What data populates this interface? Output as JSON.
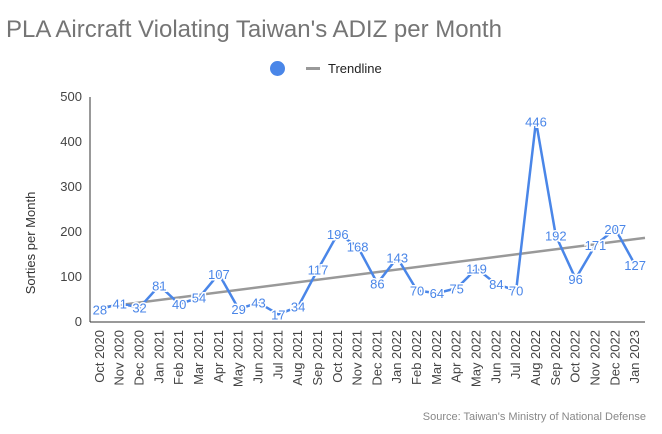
{
  "chart_data": {
    "type": "line",
    "title": "PLA Aircraft Violating Taiwan's ADIZ per Month",
    "ylabel": "Sorties per Month",
    "xlabel": "",
    "ylim": [
      0,
      500
    ],
    "yticks": [
      0,
      100,
      200,
      300,
      400,
      500
    ],
    "grid": false,
    "legend_position": "top",
    "categories": [
      "Oct 2020",
      "Nov 2020",
      "Dec 2020",
      "Jan 2021",
      "Feb 2021",
      "Mar 2021",
      "Apr 2021",
      "May 2021",
      "Jun 2021",
      "Jul 2021",
      "Aug 2021",
      "Sep 2021",
      "Oct 2021",
      "Nov 2021",
      "Dec 2021",
      "Jan 2022",
      "Feb 2022",
      "Mar 2022",
      "Apr 2022",
      "May 2022",
      "Jun 2022",
      "Jul 2022",
      "Aug 2022",
      "Sep 2022",
      "Oct 2022",
      "Nov 2022",
      "Dec 2022",
      "Jan 2023"
    ],
    "series": [
      {
        "name": "",
        "color": "#4a86e8",
        "values": [
          28,
          41,
          32,
          81,
          40,
          54,
          107,
          29,
          43,
          17,
          34,
          117,
          196,
          168,
          86,
          143,
          70,
          64,
          75,
          119,
          84,
          70,
          446,
          192,
          96,
          171,
          207,
          127
        ]
      }
    ],
    "trendline": {
      "name": "Trendline",
      "color": "#999999",
      "start": 32,
      "end": 187
    },
    "source": "Source: Taiwan's Ministry of National Defense"
  }
}
